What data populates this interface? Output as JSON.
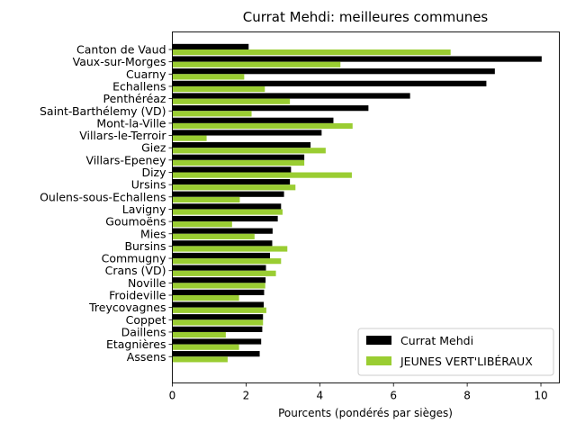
{
  "chart_data": {
    "type": "bar",
    "orientation": "horizontal",
    "title": "Currat Mehdi: meilleures communes",
    "xlabel": "Pourcents (pondérés par sièges)",
    "ylabel": "",
    "xlim": [
      0,
      10.5
    ],
    "xticks": [
      "0",
      "2",
      "4",
      "6",
      "8",
      "10"
    ],
    "grid": false,
    "legend_position": "bottom-right",
    "categories": [
      "Canton de Vaud",
      "Vaux-sur-Morges",
      "Cuarny",
      "Echallens",
      "Penthéréaz",
      "Saint-Barthélemy (VD)",
      "Mont-la-Ville",
      "Villars-le-Terroir",
      "Giez",
      "Villars-Epeney",
      "Dizy",
      "Ursins",
      "Oulens-sous-Echallens",
      "Lavigny",
      "Goumoëns",
      "Mies",
      "Bursins",
      "Commugny",
      "Crans (VD)",
      "Noville",
      "Froideville",
      "Treycovagnes",
      "Coppet",
      "Daillens",
      "Etagnières",
      "Assens"
    ],
    "series": [
      {
        "name": "Currat Mehdi",
        "color": "#000000",
        "values": [
          2.07,
          10.02,
          8.75,
          8.52,
          6.45,
          5.32,
          4.37,
          4.05,
          3.75,
          3.58,
          3.22,
          3.19,
          3.03,
          2.95,
          2.86,
          2.72,
          2.71,
          2.65,
          2.54,
          2.53,
          2.49,
          2.48,
          2.46,
          2.44,
          2.41,
          2.37
        ]
      },
      {
        "name": "JEUNES VERT'LIBÉRAUX",
        "color": "#9acd32",
        "values": [
          7.55,
          4.56,
          1.95,
          2.51,
          3.19,
          2.15,
          4.89,
          0.93,
          4.16,
          3.58,
          4.87,
          3.34,
          1.83,
          2.99,
          1.62,
          2.23,
          3.12,
          2.95,
          2.81,
          2.52,
          1.81,
          2.55,
          2.46,
          1.45,
          1.81,
          1.5
        ]
      }
    ]
  }
}
